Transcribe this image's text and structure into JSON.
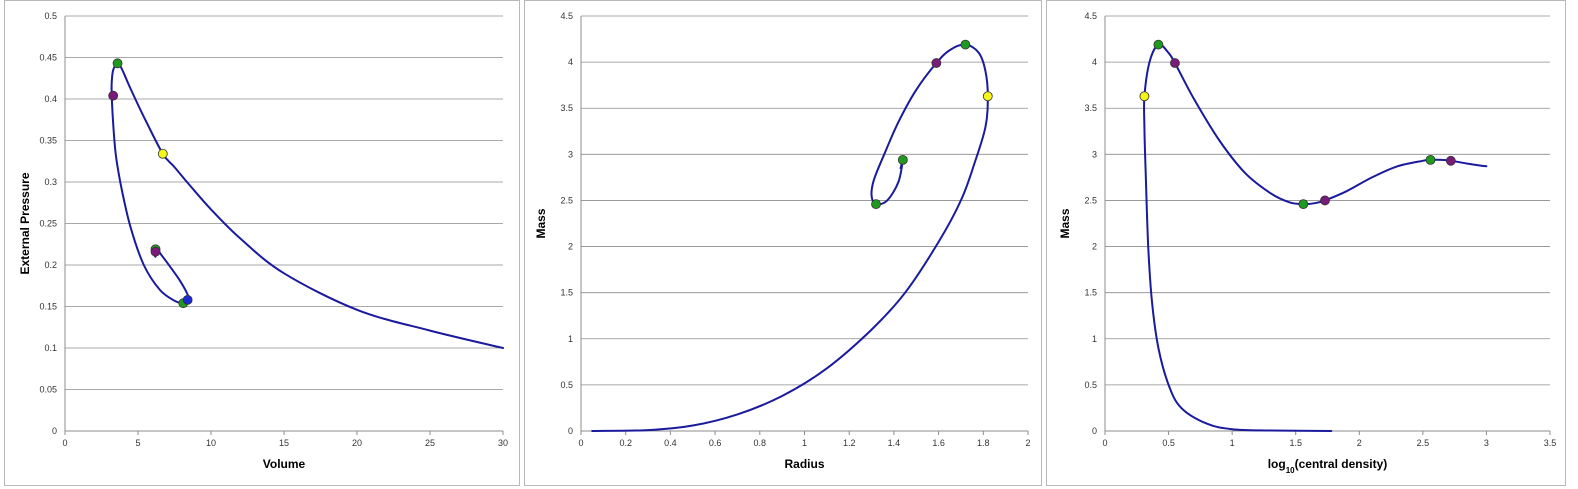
{
  "colors": {
    "curve": "#1a1a9e",
    "green": "#1f9a1f",
    "purple": "#7a1a7a",
    "yellow": "#f5f51a",
    "blue": "#1a2ad0"
  },
  "chart_data": [
    {
      "type": "line",
      "xlabel": "Volume",
      "ylabel": "External Pressure",
      "xlim": [
        0,
        30
      ],
      "ylim": [
        0,
        0.5
      ],
      "xticks": [
        "0",
        "5",
        "10",
        "15",
        "20",
        "25",
        "30"
      ],
      "yticks": [
        "0",
        "0.05",
        "0.1",
        "0.15",
        "0.2",
        "0.25",
        "0.3",
        "0.35",
        "0.4",
        "0.45",
        "0.5"
      ],
      "grid": true,
      "series": [
        {
          "points": [
            [
              30,
              0.1
            ],
            [
              25,
              0.121
            ],
            [
              20,
              0.146
            ],
            [
              15,
              0.19
            ],
            [
              12,
              0.232
            ],
            [
              10,
              0.267
            ],
            [
              8.5,
              0.297
            ],
            [
              7.5,
              0.318
            ],
            [
              6.7,
              0.334
            ],
            [
              5.5,
              0.375
            ],
            [
              4.5,
              0.412
            ],
            [
              3.9,
              0.436
            ],
            [
              3.6,
              0.443
            ],
            [
              3.3,
              0.435
            ],
            [
              3.2,
              0.42
            ],
            [
              3.2,
              0.404
            ],
            [
              3.3,
              0.37
            ],
            [
              3.5,
              0.33
            ],
            [
              3.9,
              0.29
            ],
            [
              4.5,
              0.245
            ],
            [
              5.4,
              0.2
            ],
            [
              6.5,
              0.17
            ],
            [
              7.5,
              0.157
            ],
            [
              8.2,
              0.154
            ],
            [
              8.5,
              0.158
            ],
            [
              8.3,
              0.168
            ],
            [
              7.8,
              0.183
            ],
            [
              7.2,
              0.198
            ],
            [
              6.6,
              0.212
            ],
            [
              6.3,
              0.219
            ],
            [
              6.1,
              0.213
            ],
            [
              6.2,
              0.21
            ]
          ]
        }
      ],
      "markers": [
        {
          "x": 3.6,
          "y": 0.443,
          "color": "green"
        },
        {
          "x": 3.3,
          "y": 0.404,
          "color": "purple"
        },
        {
          "x": 6.7,
          "y": 0.334,
          "color": "yellow"
        },
        {
          "x": 6.2,
          "y": 0.219,
          "color": "green"
        },
        {
          "x": 6.2,
          "y": 0.216,
          "color": "purple"
        },
        {
          "x": 8.1,
          "y": 0.154,
          "color": "green"
        },
        {
          "x": 8.4,
          "y": 0.158,
          "color": "blue"
        }
      ]
    },
    {
      "type": "line",
      "xlabel": "Radius",
      "ylabel": "Mass",
      "xlim": [
        0,
        2
      ],
      "ylim": [
        0,
        4.5
      ],
      "xticks": [
        "0",
        "0.2",
        "0.4",
        "0.6",
        "0.8",
        "1",
        "1.2",
        "1.4",
        "1.6",
        "1.8",
        "2"
      ],
      "yticks": [
        "0",
        "0.5",
        "1",
        "1.5",
        "2",
        "2.5",
        "3",
        "3.5",
        "4",
        "4.5"
      ],
      "grid": true,
      "series": [
        {
          "points": [
            [
              0.05,
              0
            ],
            [
              0.3,
              0.01
            ],
            [
              0.5,
              0.06
            ],
            [
              0.7,
              0.18
            ],
            [
              0.9,
              0.38
            ],
            [
              1.1,
              0.68
            ],
            [
              1.3,
              1.1
            ],
            [
              1.45,
              1.5
            ],
            [
              1.6,
              2.05
            ],
            [
              1.7,
              2.5
            ],
            [
              1.76,
              2.9
            ],
            [
              1.81,
              3.3
            ],
            [
              1.82,
              3.63
            ],
            [
              1.81,
              3.9
            ],
            [
              1.78,
              4.1
            ],
            [
              1.72,
              4.19
            ],
            [
              1.65,
              4.13
            ],
            [
              1.59,
              3.99
            ],
            [
              1.5,
              3.7
            ],
            [
              1.42,
              3.35
            ],
            [
              1.36,
              3.02
            ],
            [
              1.31,
              2.72
            ],
            [
              1.3,
              2.55
            ],
            [
              1.32,
              2.46
            ],
            [
              1.37,
              2.5
            ],
            [
              1.42,
              2.7
            ],
            [
              1.44,
              2.94
            ],
            [
              1.43,
              2.85
            ]
          ]
        }
      ],
      "markers": [
        {
          "x": 1.72,
          "y": 4.19,
          "color": "green"
        },
        {
          "x": 1.59,
          "y": 3.99,
          "color": "purple"
        },
        {
          "x": 1.82,
          "y": 3.63,
          "color": "yellow"
        },
        {
          "x": 1.44,
          "y": 2.94,
          "color": "green"
        },
        {
          "x": 1.32,
          "y": 2.46,
          "color": "green"
        }
      ]
    },
    {
      "type": "line",
      "xlabel": "log",
      "xlabel_sub": "10",
      "xlabel_rest": "(central density)",
      "ylabel": "Mass",
      "xlim": [
        0,
        3.5
      ],
      "ylim": [
        0,
        4.5
      ],
      "xticks": [
        "0",
        "0.5",
        "1",
        "1.5",
        "2",
        "2.5",
        "3",
        "3.5"
      ],
      "yticks": [
        "0",
        "0.5",
        "1",
        "1.5",
        "2",
        "2.5",
        "3",
        "3.5",
        "4",
        "4.5"
      ],
      "grid": true,
      "series": [
        {
          "points": [
            [
              1.78,
              0
            ],
            [
              1.3,
              0.005
            ],
            [
              1.0,
              0.02
            ],
            [
              0.8,
              0.08
            ],
            [
              0.6,
              0.25
            ],
            [
              0.5,
              0.5
            ],
            [
              0.42,
              0.9
            ],
            [
              0.37,
              1.4
            ],
            [
              0.34,
              2.0
            ],
            [
              0.32,
              2.8
            ],
            [
              0.31,
              3.3
            ],
            [
              0.31,
              3.63
            ],
            [
              0.35,
              4.0
            ],
            [
              0.42,
              4.19
            ],
            [
              0.5,
              4.1
            ],
            [
              0.55,
              3.99
            ],
            [
              0.7,
              3.6
            ],
            [
              0.9,
              3.15
            ],
            [
              1.1,
              2.8
            ],
            [
              1.3,
              2.58
            ],
            [
              1.45,
              2.48
            ],
            [
              1.56,
              2.46
            ],
            [
              1.65,
              2.47
            ],
            [
              1.73,
              2.5
            ],
            [
              1.9,
              2.6
            ],
            [
              2.1,
              2.75
            ],
            [
              2.3,
              2.87
            ],
            [
              2.5,
              2.93
            ],
            [
              2.56,
              2.94
            ],
            [
              2.65,
              2.94
            ],
            [
              2.72,
              2.93
            ],
            [
              2.85,
              2.9
            ],
            [
              3.0,
              2.87
            ]
          ]
        }
      ],
      "markers": [
        {
          "x": 0.31,
          "y": 3.63,
          "color": "yellow"
        },
        {
          "x": 0.42,
          "y": 4.19,
          "color": "green"
        },
        {
          "x": 0.55,
          "y": 3.99,
          "color": "purple"
        },
        {
          "x": 1.56,
          "y": 2.46,
          "color": "green"
        },
        {
          "x": 1.73,
          "y": 2.5,
          "color": "purple"
        },
        {
          "x": 2.56,
          "y": 2.94,
          "color": "green"
        },
        {
          "x": 2.72,
          "y": 2.93,
          "color": "purple"
        }
      ]
    }
  ]
}
